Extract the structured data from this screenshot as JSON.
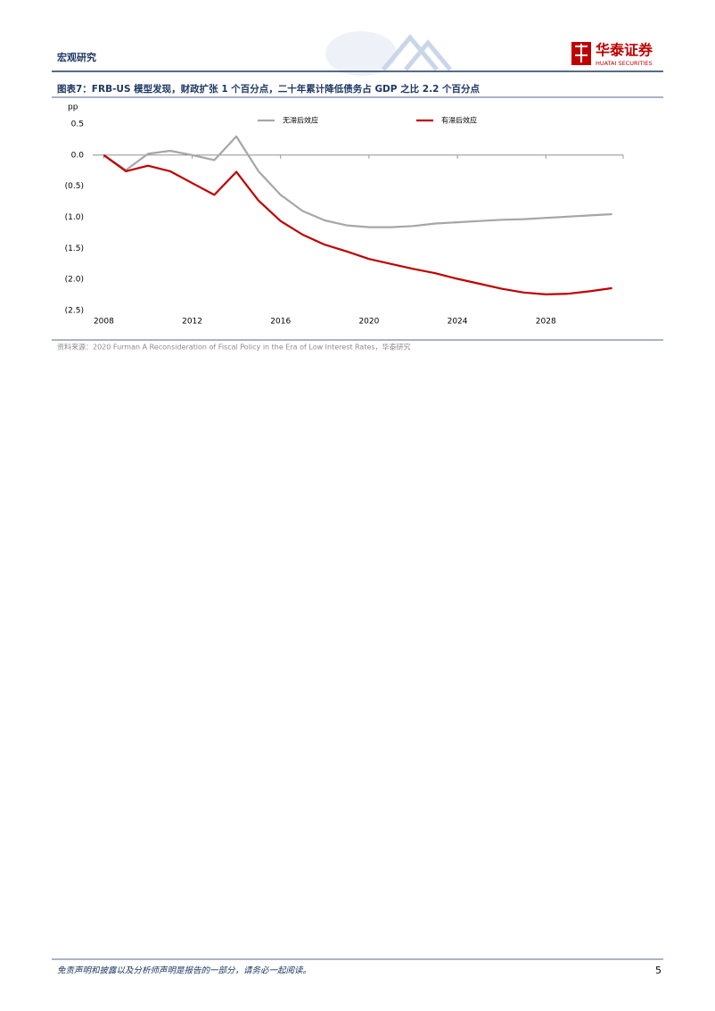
{
  "header": {
    "section": "宏观研究",
    "logo_cn": "华泰证券",
    "logo_en": "HUATAI SECURITIES"
  },
  "figure": {
    "title": "图表7：FRB-US 模型发现，财政扩张 1 个百分点，二十年累计降低债务占 GDP 之比 2.2 个百分点",
    "source": "资料来源：2020 Furman A Reconsideration of Fiscal Policy in the Era of Low Interest Rates，华泰研究"
  },
  "chart_data": {
    "type": "line",
    "ylabel": "pp",
    "x": [
      2008,
      2009,
      2010,
      2011,
      2012,
      2013,
      2014,
      2015,
      2016,
      2017,
      2018,
      2019,
      2020,
      2021,
      2022,
      2023,
      2024,
      2025,
      2026,
      2027,
      2028,
      2029,
      2030,
      2031
    ],
    "series": [
      {
        "name": "无滞后效应",
        "color": "#a6a6a6",
        "values": [
          0.0,
          -0.24,
          0.02,
          0.07,
          0.0,
          -0.08,
          0.3,
          -0.26,
          -0.64,
          -0.9,
          -1.05,
          -1.13,
          -1.16,
          -1.16,
          -1.14,
          -1.1,
          -1.08,
          -1.06,
          -1.04,
          -1.03,
          -1.01,
          -0.99,
          -0.97,
          -0.95
        ]
      },
      {
        "name": "有滞后效应",
        "color": "#c00000",
        "values": [
          0.0,
          -0.26,
          -0.17,
          -0.26,
          -0.45,
          -0.64,
          -0.27,
          -0.73,
          -1.06,
          -1.28,
          -1.44,
          -1.55,
          -1.67,
          -1.75,
          -1.83,
          -1.9,
          -1.99,
          -2.07,
          -2.15,
          -2.21,
          -2.24,
          -2.23,
          -2.19,
          -2.14
        ]
      }
    ],
    "xlim": [
      2007.5,
      2031.5
    ],
    "xticks": [
      2008,
      2012,
      2016,
      2020,
      2024,
      2028
    ],
    "ylim": [
      -2.5,
      0.5
    ],
    "yticks": [
      0.5,
      {
        "value": 0,
        "label": "0.0"
      },
      {
        "value": -0.5,
        "label": "(0.5)"
      },
      {
        "value": -1,
        "label": "(1.0)"
      },
      {
        "value": -1.5,
        "label": "(1.5)"
      },
      {
        "value": -2,
        "label": "(2.0)"
      },
      {
        "value": -2.5,
        "label": "(2.5)"
      }
    ],
    "legend": "top"
  },
  "footer": {
    "disclaimer": "免责声明和披露以及分析师声明是报告的一部分，请务必一起阅读。",
    "page": "5"
  }
}
